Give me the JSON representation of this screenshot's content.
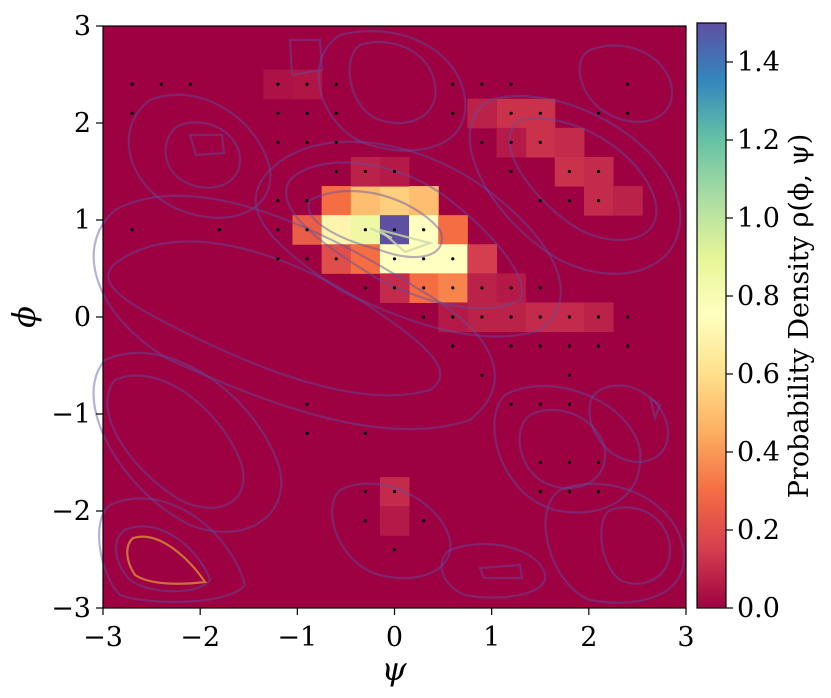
{
  "chart_data": {
    "type": "heatmap",
    "title": "",
    "xlabel": "ψ",
    "ylabel": "ϕ",
    "xlim": [
      -3,
      3
    ],
    "ylim": [
      -3,
      3
    ],
    "xticks": [
      -3,
      -2,
      -1,
      0,
      1,
      2,
      3
    ],
    "yticks": [
      -3,
      -2,
      -1,
      0,
      1,
      2,
      3
    ],
    "xtick_labels": [
      "−3",
      "−2",
      "−1",
      "0",
      "1",
      "2",
      "3"
    ],
    "ytick_labels": [
      "−3",
      "−2",
      "−1",
      "0",
      "1",
      "2",
      "3"
    ],
    "grid": false,
    "colorbar": {
      "label": "Probability Density ρ(ϕ, ψ)",
      "range": [
        0,
        1.5
      ],
      "ticks": [
        0.0,
        0.2,
        0.4,
        0.6,
        0.8,
        1.0,
        1.2,
        1.4
      ],
      "tick_labels": [
        "0.0",
        "0.2",
        "0.4",
        "0.6",
        "0.8",
        "1.0",
        "1.2",
        "1.4"
      ],
      "colormap": "Spectral"
    },
    "cell_size": 0.3,
    "background_value": 0.0,
    "cells": [
      {
        "psi": -0.6,
        "phi": 1.2,
        "v": 0.3
      },
      {
        "psi": -0.3,
        "phi": 1.2,
        "v": 0.5
      },
      {
        "psi": 0.0,
        "phi": 1.2,
        "v": 0.55
      },
      {
        "psi": 0.3,
        "phi": 1.2,
        "v": 0.5
      },
      {
        "psi": -0.9,
        "phi": 0.9,
        "v": 0.25
      },
      {
        "psi": -0.6,
        "phi": 0.9,
        "v": 0.7
      },
      {
        "psi": -0.3,
        "phi": 0.9,
        "v": 0.85
      },
      {
        "psi": 0.0,
        "phi": 0.9,
        "v": 1.5
      },
      {
        "psi": 0.3,
        "phi": 0.9,
        "v": 0.75
      },
      {
        "psi": 0.6,
        "phi": 0.9,
        "v": 0.3
      },
      {
        "psi": -0.6,
        "phi": 0.6,
        "v": 0.2
      },
      {
        "psi": -0.3,
        "phi": 0.6,
        "v": 0.3
      },
      {
        "psi": 0.0,
        "phi": 0.6,
        "v": 0.75
      },
      {
        "psi": 0.3,
        "phi": 0.6,
        "v": 0.75
      },
      {
        "psi": 0.6,
        "phi": 0.6,
        "v": 0.75
      },
      {
        "psi": 0.9,
        "phi": 0.6,
        "v": 0.15
      },
      {
        "psi": 0.3,
        "phi": 0.3,
        "v": 0.3
      },
      {
        "psi": 0.6,
        "phi": 0.3,
        "v": 0.35
      },
      {
        "psi": 0.0,
        "phi": 0.3,
        "v": 0.1
      },
      {
        "psi": -0.3,
        "phi": 1.5,
        "v": 0.08
      },
      {
        "psi": 0.0,
        "phi": 1.5,
        "v": 0.06
      },
      {
        "psi": 0.9,
        "phi": 0.3,
        "v": 0.08
      },
      {
        "psi": 1.2,
        "phi": 0.3,
        "v": 0.06
      },
      {
        "psi": 0.9,
        "phi": 0.0,
        "v": 0.08
      },
      {
        "psi": 1.2,
        "phi": 0.0,
        "v": 0.08
      },
      {
        "psi": 1.5,
        "phi": 0.0,
        "v": 0.1
      },
      {
        "psi": 1.8,
        "phi": 0.0,
        "v": 0.1
      },
      {
        "psi": 2.1,
        "phi": 0.0,
        "v": 0.08
      },
      {
        "psi": 0.6,
        "phi": 0.0,
        "v": 0.06
      },
      {
        "psi": 1.2,
        "phi": 2.1,
        "v": 0.12
      },
      {
        "psi": 1.5,
        "phi": 2.1,
        "v": 0.12
      },
      {
        "psi": 0.9,
        "phi": 2.1,
        "v": 0.08
      },
      {
        "psi": 1.5,
        "phi": 1.8,
        "v": 0.12
      },
      {
        "psi": 1.8,
        "phi": 1.8,
        "v": 0.1
      },
      {
        "psi": 1.8,
        "phi": 1.5,
        "v": 0.12
      },
      {
        "psi": 2.1,
        "phi": 1.5,
        "v": 0.1
      },
      {
        "psi": 2.1,
        "phi": 1.2,
        "v": 0.1
      },
      {
        "psi": 2.4,
        "phi": 1.2,
        "v": 0.08
      },
      {
        "psi": 1.2,
        "phi": 1.8,
        "v": 0.06
      },
      {
        "psi": -0.9,
        "phi": 2.4,
        "v": 0.05
      },
      {
        "psi": -1.2,
        "phi": 2.4,
        "v": 0.04
      },
      {
        "psi": 0.0,
        "phi": -1.8,
        "v": 0.1
      },
      {
        "psi": 0.0,
        "phi": -2.1,
        "v": 0.06
      }
    ],
    "samples": [
      {
        "psi": -2.7,
        "phi": 2.4
      },
      {
        "psi": -2.4,
        "phi": 2.4
      },
      {
        "psi": -2.1,
        "phi": 2.4
      },
      {
        "psi": -1.2,
        "phi": 2.4
      },
      {
        "psi": -0.9,
        "phi": 2.4
      },
      {
        "psi": -0.6,
        "phi": 2.4
      },
      {
        "psi": 0.6,
        "phi": 2.4
      },
      {
        "psi": 0.9,
        "phi": 2.4
      },
      {
        "psi": 1.2,
        "phi": 2.4
      },
      {
        "psi": 2.4,
        "phi": 2.4
      },
      {
        "psi": -2.7,
        "phi": 2.1
      },
      {
        "psi": -1.2,
        "phi": 2.1
      },
      {
        "psi": -0.9,
        "phi": 2.1
      },
      {
        "psi": -0.6,
        "phi": 2.1
      },
      {
        "psi": 0.6,
        "phi": 2.1
      },
      {
        "psi": 1.2,
        "phi": 2.1
      },
      {
        "psi": 1.5,
        "phi": 2.1
      },
      {
        "psi": 2.1,
        "phi": 2.1
      },
      {
        "psi": 2.4,
        "phi": 2.1
      },
      {
        "psi": -1.2,
        "phi": 1.8
      },
      {
        "psi": -0.9,
        "phi": 1.8
      },
      {
        "psi": -0.6,
        "phi": 1.8
      },
      {
        "psi": 0.9,
        "phi": 1.8
      },
      {
        "psi": 1.2,
        "phi": 1.8
      },
      {
        "psi": 1.5,
        "phi": 1.8
      },
      {
        "psi": -0.6,
        "phi": 1.5
      },
      {
        "psi": -0.3,
        "phi": 1.5
      },
      {
        "psi": 0.0,
        "phi": 1.5
      },
      {
        "psi": 1.2,
        "phi": 1.5
      },
      {
        "psi": 1.8,
        "phi": 1.5
      },
      {
        "psi": 2.1,
        "phi": 1.5
      },
      {
        "psi": -1.2,
        "phi": 1.2
      },
      {
        "psi": -0.9,
        "phi": 1.2
      },
      {
        "psi": 1.5,
        "phi": 1.2
      },
      {
        "psi": 1.8,
        "phi": 1.2
      },
      {
        "psi": 2.1,
        "phi": 1.2
      },
      {
        "psi": -2.7,
        "phi": 0.9
      },
      {
        "psi": -1.8,
        "phi": 0.9
      },
      {
        "psi": -1.2,
        "phi": 0.9
      },
      {
        "psi": -0.9,
        "phi": 0.9
      },
      {
        "psi": -0.3,
        "phi": 0.9
      },
      {
        "psi": 0.0,
        "phi": 0.9
      },
      {
        "psi": 0.3,
        "phi": 0.9
      },
      {
        "psi": -1.2,
        "phi": 0.6
      },
      {
        "psi": -0.9,
        "phi": 0.6
      },
      {
        "psi": -0.6,
        "phi": 0.6
      },
      {
        "psi": 0.0,
        "phi": 0.6
      },
      {
        "psi": 0.3,
        "phi": 0.6
      },
      {
        "psi": 0.6,
        "phi": 0.6
      },
      {
        "psi": -0.3,
        "phi": 0.3
      },
      {
        "psi": 0.0,
        "phi": 0.3
      },
      {
        "psi": 0.3,
        "phi": 0.3
      },
      {
        "psi": 0.6,
        "phi": 0.3
      },
      {
        "psi": 0.9,
        "phi": 0.3
      },
      {
        "psi": 1.2,
        "phi": 0.3
      },
      {
        "psi": 1.5,
        "phi": 0.3
      },
      {
        "psi": 0.3,
        "phi": 0.0
      },
      {
        "psi": 0.6,
        "phi": 0.0
      },
      {
        "psi": 0.9,
        "phi": 0.0
      },
      {
        "psi": 1.2,
        "phi": 0.0
      },
      {
        "psi": 1.5,
        "phi": 0.0
      },
      {
        "psi": 1.8,
        "phi": 0.0
      },
      {
        "psi": 2.1,
        "phi": 0.0
      },
      {
        "psi": 2.4,
        "phi": 0.0
      },
      {
        "psi": 0.6,
        "phi": -0.3
      },
      {
        "psi": 1.2,
        "phi": -0.3
      },
      {
        "psi": 1.5,
        "phi": -0.3
      },
      {
        "psi": 1.8,
        "phi": -0.3
      },
      {
        "psi": 2.1,
        "phi": -0.3
      },
      {
        "psi": 2.4,
        "phi": -0.3
      },
      {
        "psi": 0.9,
        "phi": -0.6
      },
      {
        "psi": 1.8,
        "phi": -0.6
      },
      {
        "psi": 1.2,
        "phi": -0.9
      },
      {
        "psi": 1.5,
        "phi": -0.9
      },
      {
        "psi": 1.8,
        "phi": -0.9
      },
      {
        "psi": -0.9,
        "phi": -0.9
      },
      {
        "psi": -0.9,
        "phi": -1.2
      },
      {
        "psi": -0.3,
        "phi": -1.2
      },
      {
        "psi": 1.5,
        "phi": -1.5
      },
      {
        "psi": 1.8,
        "phi": -1.5
      },
      {
        "psi": 2.1,
        "phi": -1.5
      },
      {
        "psi": 1.5,
        "phi": -1.8
      },
      {
        "psi": 1.8,
        "phi": -1.8
      },
      {
        "psi": 2.1,
        "phi": -1.8
      },
      {
        "psi": -0.3,
        "phi": -1.8
      },
      {
        "psi": 0.0,
        "phi": -1.8
      },
      {
        "psi": -0.3,
        "phi": -2.1
      },
      {
        "psi": 0.3,
        "phi": -2.1
      },
      {
        "psi": 0.0,
        "phi": -2.4
      }
    ]
  }
}
